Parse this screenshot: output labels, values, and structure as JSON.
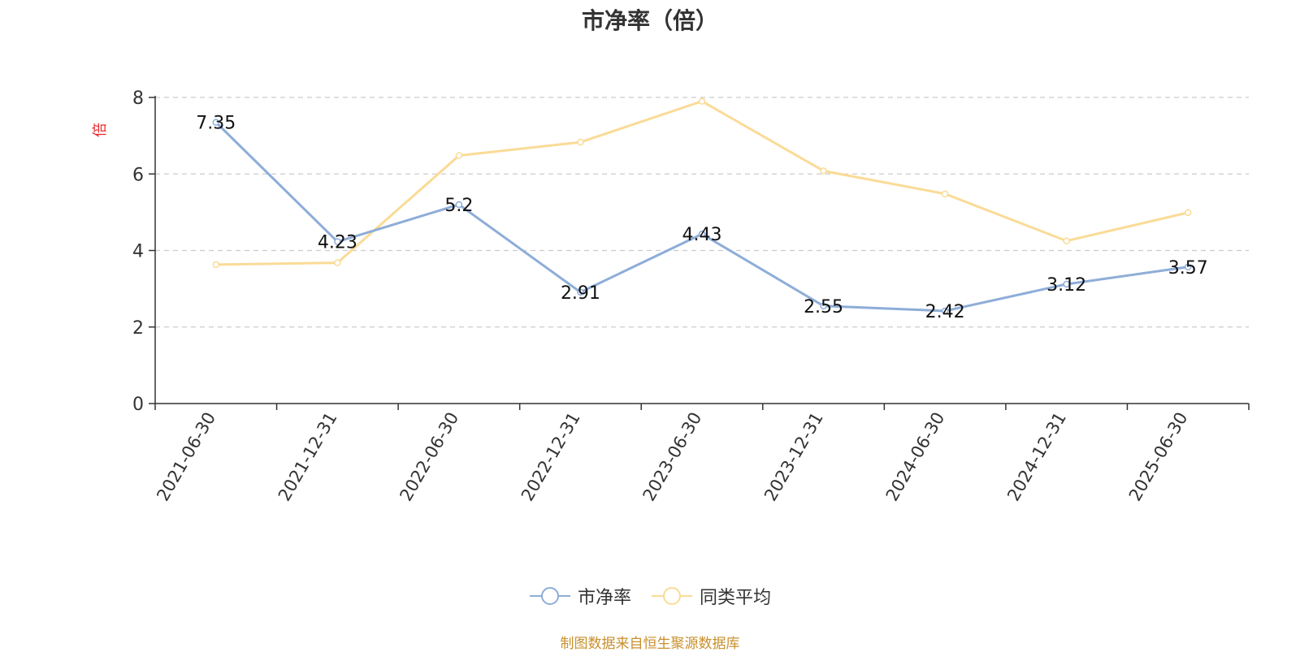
{
  "chart_data": {
    "type": "line",
    "title": "市净率（倍）",
    "ylabel": "倍",
    "xlabel": "",
    "categories": [
      "2021-06-30",
      "2021-12-31",
      "2022-06-30",
      "2022-12-31",
      "2023-06-30",
      "2023-12-31",
      "2024-06-30",
      "2024-12-31",
      "2025-06-30"
    ],
    "ylim": [
      0,
      8
    ],
    "yticks": [
      "0",
      "2",
      "4",
      "6",
      "8"
    ],
    "grid": true,
    "legend_position": "bottom-center",
    "series": [
      {
        "name": "市净率",
        "color": "#8eadd8",
        "values": [
          7.35,
          4.23,
          5.2,
          2.91,
          4.43,
          2.55,
          2.42,
          3.12,
          3.57
        ],
        "labels": [
          "7.35",
          "4.23",
          "5.2",
          "2.91",
          "4.43",
          "2.55",
          "2.42",
          "3.12",
          "3.57"
        ]
      },
      {
        "name": "同类平均",
        "color": "#fadb96",
        "values": [
          3.63,
          3.68,
          6.48,
          6.83,
          7.9,
          6.08,
          5.48,
          4.25,
          4.99
        ]
      }
    ]
  },
  "source_note": "制图数据来自恒生聚源数据库"
}
